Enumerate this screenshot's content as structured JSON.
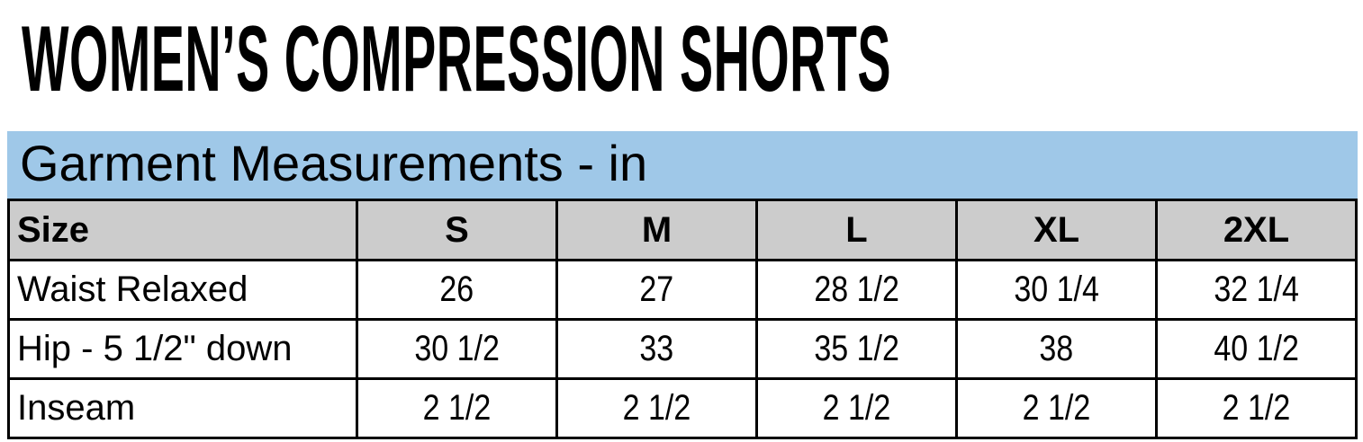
{
  "title": "WOMEN’S COMPRESSION SHORTS",
  "section_heading": "Garment Measurements - in",
  "colors": {
    "band": "#9fc8e8",
    "header_row": "#cccccc"
  },
  "table": {
    "header": [
      "Size",
      "S",
      "M",
      "L",
      "XL",
      "2XL"
    ],
    "rows": [
      {
        "label": "Waist Relaxed",
        "values": [
          "26",
          "27",
          "28 1/2",
          "30 1/4",
          "32 1/4"
        ]
      },
      {
        "label": "Hip - 5 1/2\" down",
        "values": [
          "30 1/2",
          "33",
          "35 1/2",
          "38",
          "40 1/2"
        ]
      },
      {
        "label": "Inseam",
        "values": [
          "2 1/2",
          "2 1/2",
          "2 1/2",
          "2 1/2",
          "2 1/2"
        ]
      }
    ]
  }
}
